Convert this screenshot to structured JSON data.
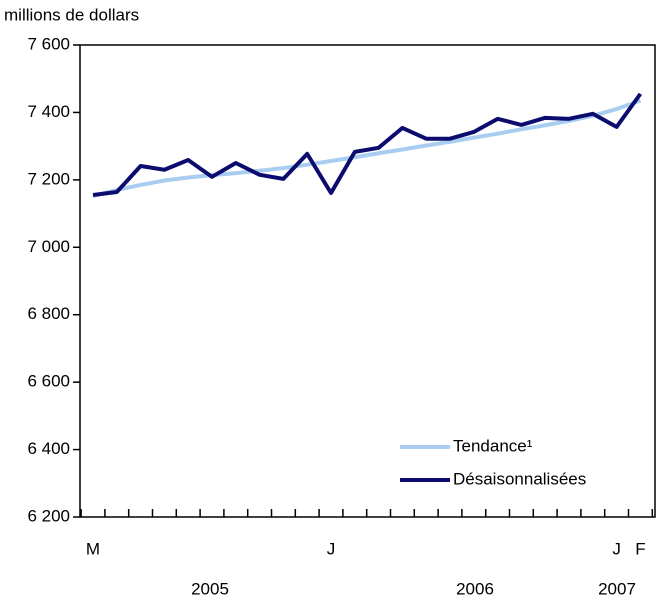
{
  "chart_data": {
    "type": "line",
    "y_axis_label": "millions de dollars",
    "categories": [
      "M",
      null,
      null,
      null,
      null,
      null,
      null,
      null,
      null,
      null,
      "J",
      null,
      null,
      null,
      null,
      null,
      null,
      null,
      null,
      null,
      null,
      null,
      "J",
      "F"
    ],
    "year_labels": [
      "2005",
      "2006",
      "2007"
    ],
    "series": [
      {
        "name": "Tendance¹",
        "color": "#a9cdf0",
        "values": [
          7152,
          7170,
          7185,
          7198,
          7207,
          7214,
          7220,
          7227,
          7235,
          7245,
          7256,
          7267,
          7279,
          7290,
          7302,
          7313,
          7325,
          7337,
          7350,
          7362,
          7375,
          7390,
          7410,
          7435
        ]
      },
      {
        "name": "Désaisonnalisées",
        "color": "#0c0c6e",
        "values": [
          7155,
          7164,
          7241,
          7230,
          7259,
          7209,
          7250,
          7215,
          7203,
          7277,
          7161,
          7283,
          7295,
          7354,
          7322,
          7322,
          7342,
          7381,
          7363,
          7384,
          7381,
          7396,
          7357,
          7455
        ]
      }
    ],
    "ylim": [
      6200,
      7600
    ],
    "yticks": [
      {
        "value": 6200,
        "label": "6 200"
      },
      {
        "value": 6400,
        "label": "6 400"
      },
      {
        "value": 6600,
        "label": "6 600"
      },
      {
        "value": 6800,
        "label": "6 800"
      },
      {
        "value": 7000,
        "label": "7 000"
      },
      {
        "value": 7200,
        "label": "7 200"
      },
      {
        "value": 7400,
        "label": "7 400"
      },
      {
        "value": 7600,
        "label": "7 600"
      }
    ],
    "legend": "lower right"
  }
}
